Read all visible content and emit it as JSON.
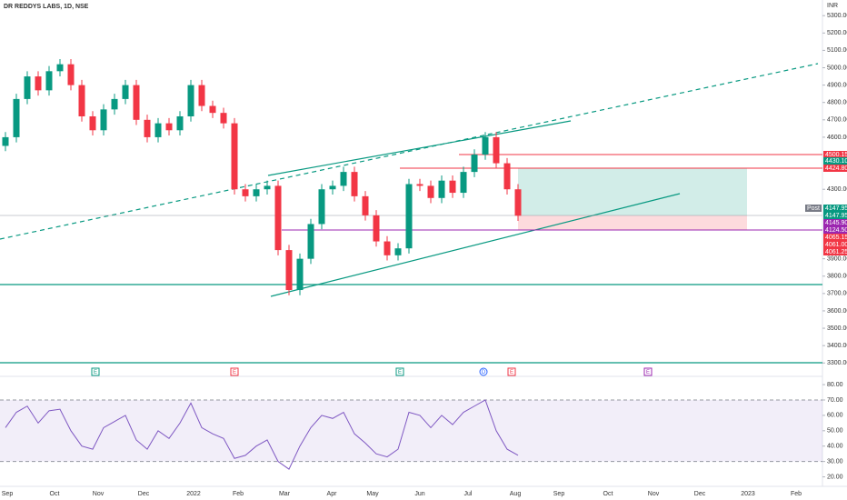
{
  "chart_data": {
    "type": "candlestick",
    "title": "DR REDDYS LABS, 1D, NSE",
    "currency": "INR",
    "up_color": "#089981",
    "down_color": "#f23645",
    "ylim": [
      3270,
      5390
    ],
    "yticks": [
      {
        "value": 5300,
        "label": "5300.00"
      },
      {
        "value": 5200,
        "label": "5200.00"
      },
      {
        "value": 5100,
        "label": "5100.00"
      },
      {
        "value": 5000,
        "label": "5000.00"
      },
      {
        "value": 4900,
        "label": "4900.00"
      },
      {
        "value": 4800,
        "label": "4800.00"
      },
      {
        "value": 4700,
        "label": "4700.00"
      },
      {
        "value": 4600,
        "label": "4600.00"
      },
      {
        "value": 4300,
        "label": "4300.00"
      },
      {
        "value": 3900,
        "label": "3900.00"
      },
      {
        "value": 3800,
        "label": "3800.00"
      },
      {
        "value": 3700,
        "label": "3700.00"
      },
      {
        "value": 3600,
        "label": "3600.00"
      },
      {
        "value": 3500,
        "label": "3500.00"
      },
      {
        "value": 3400,
        "label": "3400.00"
      },
      {
        "value": 3300,
        "label": "3300.00"
      }
    ],
    "open": [
      4550,
      4600,
      4820,
      4950,
      4870,
      4980,
      5020,
      4900,
      4720,
      4640,
      4760,
      4820,
      4900,
      4700,
      4600,
      4680,
      4640,
      4720,
      4900,
      4780,
      4740,
      4680,
      4300,
      4260,
      4300,
      4320,
      3950,
      3720,
      3900,
      4100,
      4300,
      4320,
      4400,
      4260,
      4150,
      4000,
      3920,
      3960,
      4330,
      4320,
      4250,
      4350,
      4280,
      4400,
      4500,
      4600,
      4450,
      4300
    ],
    "high": [
      4630,
      4850,
      4980,
      4980,
      5010,
      5050,
      5050,
      4930,
      4750,
      4790,
      4850,
      4930,
      4930,
      4730,
      4710,
      4710,
      4750,
      4930,
      4930,
      4810,
      4770,
      4710,
      4330,
      4330,
      4350,
      4350,
      3980,
      3930,
      4130,
      4330,
      4350,
      4430,
      4430,
      4290,
      4180,
      4030,
      3990,
      4360,
      4360,
      4350,
      4380,
      4380,
      4430,
      4530,
      4630,
      4630,
      4480,
      4330
    ],
    "low": [
      4520,
      4570,
      4790,
      4840,
      4840,
      4950,
      4870,
      4690,
      4610,
      4610,
      4730,
      4790,
      4670,
      4570,
      4570,
      4610,
      4610,
      4690,
      4750,
      4710,
      4650,
      4270,
      4230,
      4230,
      4270,
      3920,
      3690,
      3690,
      3870,
      4070,
      4270,
      4290,
      4230,
      4120,
      3970,
      3890,
      3890,
      3930,
      4290,
      4220,
      4220,
      4250,
      4250,
      4370,
      4470,
      4420,
      4270,
      4118
    ],
    "close": [
      4600,
      4820,
      4950,
      4870,
      4980,
      5020,
      4900,
      4720,
      4640,
      4760,
      4820,
      4900,
      4700,
      4600,
      4680,
      4640,
      4720,
      4900,
      4780,
      4740,
      4680,
      4300,
      4260,
      4300,
      4320,
      3950,
      3720,
      3900,
      4100,
      4300,
      4320,
      4400,
      4260,
      4150,
      4000,
      3920,
      3960,
      4330,
      4320,
      4250,
      4350,
      4280,
      4400,
      4500,
      4600,
      4450,
      4300,
      4148
    ],
    "price_labels": [
      {
        "value": 4500.15,
        "label": "4500.15",
        "color": "#f23645"
      },
      {
        "value": 4430.1,
        "label": "4430.10",
        "color": "#089981"
      },
      {
        "value": 4424.8,
        "label": "4424.80",
        "color": "#f23645"
      },
      {
        "value": 4147.95,
        "label": "4147.95",
        "color": "#089981",
        "tag": "Post"
      },
      {
        "value": 4147.95,
        "label": "4147.95",
        "color": "#089981"
      },
      {
        "value": 4145.9,
        "label": "4145.90",
        "color": "#9c27b0"
      },
      {
        "value": 4124.5,
        "label": "4124.50",
        "color": "#9c27b0"
      },
      {
        "value": 4065.15,
        "label": "4065.15",
        "color": "#f23645"
      },
      {
        "value": 4061.0,
        "label": "4061.00",
        "color": "#f23645"
      },
      {
        "value": 4061.25,
        "label": "4061.25",
        "color": "#f23645"
      }
    ],
    "events": [
      "E",
      "E",
      "E",
      "D",
      "E",
      "E"
    ],
    "x_labels": [
      "Sep",
      "Oct",
      "Nov",
      "Dec",
      "2022",
      "Feb",
      "Mar",
      "Apr",
      "May",
      "Jun",
      "Jul",
      "Aug",
      "Sep",
      "Oct",
      "Nov",
      "Dec",
      "2023",
      "Feb"
    ],
    "rsi": {
      "color": "#7e57c2",
      "ylim": [
        15,
        83
      ],
      "yticks": [
        {
          "value": 80,
          "label": "80.00"
        },
        {
          "value": 70,
          "label": "70.00"
        },
        {
          "value": 60,
          "label": "60.00"
        },
        {
          "value": 50,
          "label": "50.00"
        },
        {
          "value": 40,
          "label": "40.00"
        },
        {
          "value": 30,
          "label": "30.00"
        },
        {
          "value": 20,
          "label": "20.00"
        }
      ],
      "band": [
        30,
        70
      ],
      "values": [
        52,
        62,
        66,
        55,
        63,
        64,
        50,
        40,
        38,
        52,
        56,
        60,
        44,
        38,
        50,
        45,
        55,
        68,
        52,
        48,
        45,
        32,
        34,
        40,
        44,
        30,
        25,
        40,
        52,
        60,
        58,
        62,
        48,
        42,
        35,
        33,
        38,
        62,
        60,
        52,
        60,
        54,
        62,
        66,
        70,
        50,
        38,
        34
      ]
    }
  }
}
